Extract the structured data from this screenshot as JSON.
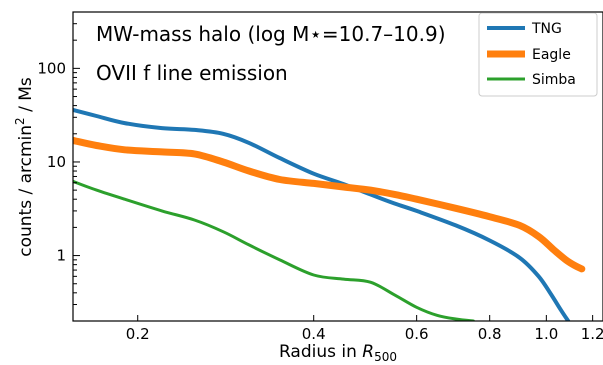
{
  "chart_data": {
    "type": "line",
    "xlabel": "Radius in R500",
    "xlabel_prefix": "Radius in ",
    "xlabel_var": "R",
    "xlabel_sub": "500",
    "ylabel": "counts / arcmin² / Ms",
    "ylabel_main": "counts / arcmin",
    "ylabel_sup": "2",
    "ylabel_tail": " / Ms",
    "xscale": "log",
    "yscale": "log",
    "xlim": [
      0.155,
      1.25
    ],
    "ylim": [
      0.2,
      400
    ],
    "xticks": [
      0.2,
      0.4,
      0.6,
      0.8,
      1.0,
      1.2
    ],
    "xtick_labels": [
      "0.2",
      "0.4",
      "0.6",
      "0.8",
      "1.0",
      "1.2"
    ],
    "yticks": [
      1,
      10,
      100
    ],
    "ytick_labels": [
      "1",
      "10",
      "100"
    ],
    "annotations": [
      "MW-mass halo (log M⋆=10.7–10.9)",
      "OVII f line emission"
    ],
    "legend_position": "top-right",
    "series": [
      {
        "name": "TNG",
        "color": "#1f77b4",
        "x": [
          0.155,
          0.17,
          0.19,
          0.22,
          0.25,
          0.28,
          0.31,
          0.35,
          0.4,
          0.45,
          0.5,
          0.55,
          0.6,
          0.7,
          0.8,
          0.9,
          0.97,
          1.02,
          1.06,
          1.09
        ],
        "y": [
          36,
          31,
          26,
          23,
          22,
          20,
          16,
          11,
          7.5,
          5.8,
          4.5,
          3.6,
          3.0,
          2.1,
          1.45,
          0.95,
          0.6,
          0.38,
          0.26,
          0.2
        ]
      },
      {
        "name": "Eagle",
        "color": "#ff7f0e",
        "x": [
          0.155,
          0.17,
          0.19,
          0.22,
          0.25,
          0.28,
          0.31,
          0.35,
          0.4,
          0.45,
          0.5,
          0.55,
          0.6,
          0.7,
          0.8,
          0.9,
          0.97,
          1.03,
          1.08,
          1.12,
          1.15
        ],
        "y": [
          17,
          15,
          13.5,
          12.8,
          12.2,
          10,
          8,
          6.5,
          5.9,
          5.4,
          5.0,
          4.5,
          4.0,
          3.2,
          2.6,
          2.1,
          1.6,
          1.15,
          0.9,
          0.78,
          0.72
        ]
      },
      {
        "name": "Simba",
        "color": "#2ca02c",
        "x": [
          0.155,
          0.17,
          0.19,
          0.22,
          0.25,
          0.28,
          0.31,
          0.35,
          0.4,
          0.45,
          0.5,
          0.55,
          0.6,
          0.65,
          0.7,
          0.75
        ],
        "y": [
          6.2,
          5.0,
          4.0,
          3.0,
          2.4,
          1.8,
          1.3,
          0.9,
          0.62,
          0.56,
          0.52,
          0.38,
          0.28,
          0.23,
          0.21,
          0.2
        ]
      }
    ]
  }
}
